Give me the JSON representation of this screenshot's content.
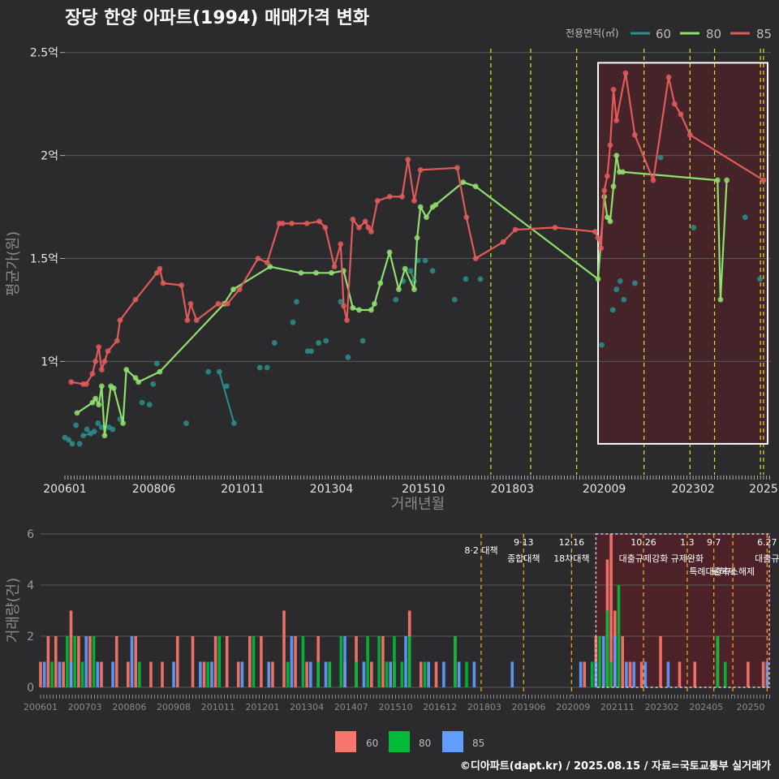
{
  "title": "장당 한양 아파트(1994) 매매가격 변화",
  "colors": {
    "bg": "#2b2b2d",
    "grid": "#5a5a5a",
    "teal": "#2a8f8c",
    "green": "#8fdf6f",
    "red": "#e05a5a",
    "bar60": "#f8766d",
    "bar80": "#00ba38",
    "bar85": "#619cff",
    "shade": "#5a1f27",
    "vline_yellow": "#e8e020",
    "vline_orange": "#f0a020"
  },
  "footer": "©디아파트(dapt.kr) / 2025.08.15 / 자료=국토교통부 실거래가",
  "chart_data": [
    {
      "type": "line",
      "title": "장당 한양 아파트(1994) 매매가격 변화",
      "xlabel": "거래년월",
      "ylabel": "평균가(원)",
      "ylim": [
        0.45,
        2.55
      ],
      "yticks": [
        1,
        1.5,
        2,
        2.5
      ],
      "ytick_labels": [
        "1억",
        "1.5억",
        "2억",
        "2.5억"
      ],
      "xlim": [
        2006.0,
        2025.2
      ],
      "xticks": [
        2006.0,
        2008.417,
        2010.833,
        2013.25,
        2015.75,
        2018.167,
        2020.667,
        2023.083,
        2025.0
      ],
      "xtick_labels": [
        "200601",
        "200806",
        "201011",
        "201304",
        "201510",
        "201803",
        "202009",
        "202302",
        "2025"
      ],
      "legend": {
        "title": "전용면적(㎡)",
        "position": "top-right",
        "entries": [
          "60",
          "80",
          "85"
        ]
      },
      "vlines": [
        2017.583,
        2018.667,
        2019.917,
        2021.75,
        2023.0,
        2023.667,
        2024.917,
        2025.0
      ],
      "highlight": {
        "x": [
          2020.5,
          2025.2
        ],
        "y": [
          0.6,
          2.45
        ]
      },
      "series": [
        {
          "name": "60",
          "x": [
            2006.0,
            2006.1,
            2006.2,
            2006.3,
            2006.4,
            2006.5,
            2006.6,
            2006.7,
            2006.8,
            2006.9,
            2007.0,
            2007.2,
            2007.3,
            2007.5,
            2008.1,
            2008.3,
            2008.4,
            2008.5,
            2009.3,
            2009.9,
            2010.2,
            2010.4,
            2010.6,
            2011.3,
            2011.5,
            2011.7,
            2012.2,
            2012.3,
            2012.6,
            2012.7,
            2012.9,
            2013.1,
            2013.5,
            2013.7,
            2014.1,
            2015.0,
            2015.2,
            2015.4,
            2015.5,
            2015.6,
            2015.8,
            2016.0,
            2016.6,
            2016.9,
            2017.3,
            2020.6,
            2020.9,
            2021.0,
            2021.1,
            2021.2,
            2021.5,
            2022.2,
            2023.1,
            2024.5,
            2024.9
          ],
          "values": [
            0.63,
            0.62,
            0.6,
            0.69,
            0.6,
            0.64,
            0.67,
            0.65,
            0.66,
            0.7,
            0.68,
            0.68,
            0.67,
            0.72,
            0.8,
            0.79,
            0.89,
            0.99,
            0.7,
            0.95,
            0.95,
            0.88,
            0.7,
            0.97,
            0.97,
            1.09,
            1.19,
            1.29,
            1.05,
            1.05,
            1.09,
            1.1,
            1.29,
            1.02,
            1.1,
            1.3,
            1.39,
            1.44,
            1.39,
            1.49,
            1.49,
            1.44,
            1.3,
            1.4,
            1.4,
            1.08,
            1.25,
            1.35,
            1.39,
            1.3,
            1.38,
            1.99,
            1.65,
            1.7,
            1.4
          ]
        },
        {
          "name": "80",
          "x": [
            2006.33,
            2006.75,
            2006.83,
            2006.92,
            2007.0,
            2007.08,
            2007.25,
            2007.33,
            2007.58,
            2007.67,
            2007.92,
            2008.0,
            2008.58,
            2010.33,
            2010.58,
            2011.58,
            2012.42,
            2012.83,
            2013.25,
            2013.58,
            2013.83,
            2014.0,
            2014.33,
            2014.42,
            2014.58,
            2014.83,
            2015.08,
            2015.25,
            2015.5,
            2015.58,
            2015.67,
            2015.83,
            2016.0,
            2016.08,
            2016.83,
            2017.17,
            2020.5,
            2020.67,
            2020.75,
            2020.83,
            2020.92,
            2021.0,
            2021.08,
            2021.17,
            2023.75,
            2023.83,
            2024.0
          ],
          "values": [
            0.75,
            0.8,
            0.82,
            0.79,
            0.88,
            0.64,
            0.88,
            0.87,
            0.7,
            0.96,
            0.92,
            0.9,
            0.95,
            1.28,
            1.35,
            1.46,
            1.43,
            1.43,
            1.43,
            1.44,
            1.26,
            1.25,
            1.25,
            1.28,
            1.38,
            1.53,
            1.35,
            1.45,
            1.35,
            1.6,
            1.75,
            1.7,
            1.75,
            1.76,
            1.87,
            1.85,
            1.4,
            1.8,
            1.7,
            1.68,
            1.85,
            2.0,
            1.92,
            1.92,
            1.88,
            1.3,
            1.88
          ]
        },
        {
          "name": "85",
          "x": [
            2006.17,
            2006.5,
            2006.58,
            2006.75,
            2006.83,
            2006.92,
            2007.0,
            2007.08,
            2007.17,
            2007.42,
            2007.5,
            2007.92,
            2008.5,
            2008.58,
            2008.67,
            2009.17,
            2009.33,
            2009.42,
            2009.58,
            2010.17,
            2010.42,
            2010.75,
            2011.25,
            2011.5,
            2011.83,
            2011.92,
            2012.17,
            2012.58,
            2012.92,
            2013.08,
            2013.33,
            2013.5,
            2013.58,
            2013.67,
            2013.83,
            2014.0,
            2014.17,
            2014.25,
            2014.33,
            2014.5,
            2014.83,
            2015.17,
            2015.33,
            2015.5,
            2015.67,
            2016.67,
            2016.92,
            2017.17,
            2017.92,
            2018.25,
            2019.33,
            2020.42,
            2020.5,
            2020.58,
            2020.67,
            2020.75,
            2020.83,
            2020.92,
            2021.0,
            2021.25,
            2021.5,
            2022.0,
            2022.42,
            2022.58,
            2022.75,
            2023.0,
            2025.0
          ],
          "values": [
            0.9,
            0.89,
            0.89,
            0.94,
            1.0,
            1.07,
            0.96,
            1.0,
            1.05,
            1.1,
            1.2,
            1.3,
            1.43,
            1.45,
            1.38,
            1.37,
            1.2,
            1.28,
            1.2,
            1.28,
            1.28,
            1.35,
            1.5,
            1.48,
            1.67,
            1.67,
            1.67,
            1.67,
            1.68,
            1.65,
            1.46,
            1.57,
            1.27,
            1.2,
            1.69,
            1.65,
            1.68,
            1.65,
            1.63,
            1.78,
            1.8,
            1.8,
            1.98,
            1.78,
            1.93,
            1.94,
            1.7,
            1.5,
            1.58,
            1.64,
            1.65,
            1.63,
            1.6,
            1.55,
            1.83,
            1.9,
            2.05,
            2.32,
            2.17,
            2.4,
            2.1,
            1.88,
            2.38,
            2.25,
            2.2,
            2.1,
            1.88
          ]
        }
      ]
    },
    {
      "type": "bar",
      "ylabel": "거래량(건)",
      "ylim": [
        0,
        6
      ],
      "yticks": [
        0,
        2,
        4,
        6
      ],
      "xtick_labels": [
        "200601",
        "200703",
        "200806",
        "200908",
        "201011",
        "201201",
        "201304",
        "201407",
        "201510",
        "201612",
        "201803",
        "201906",
        "202009",
        "202111",
        "202302",
        "202405",
        "20250"
      ],
      "legend": {
        "position": "bottom",
        "entries": [
          "60",
          "80",
          "85"
        ]
      },
      "series": [
        {
          "name": "60",
          "x": [
            2006.0,
            2006.2,
            2006.4,
            2006.6,
            2006.8,
            2007.0,
            2007.3,
            2007.6,
            2008.0,
            2008.3,
            2008.5,
            2008.9,
            2009.2,
            2009.6,
            2010.0,
            2010.3,
            2010.6,
            2010.9,
            2011.2,
            2011.5,
            2011.8,
            2012.1,
            2012.4,
            2012.7,
            2013.0,
            2013.3,
            2013.6,
            2014.0,
            2014.3,
            2014.7,
            2015.0,
            2015.3,
            2015.7,
            2016.0,
            2016.4,
            2016.9,
            2020.3,
            2020.6,
            2020.9,
            2021.0,
            2021.1,
            2021.3,
            2021.5,
            2021.8,
            2022.3,
            2022.8,
            2023.2,
            2023.8,
            2024.6,
            2025.0
          ],
          "values": [
            1,
            2,
            2,
            1,
            3,
            2,
            2,
            1,
            2,
            1,
            2,
            1,
            1,
            2,
            2,
            1,
            2,
            2,
            1,
            2,
            2,
            1,
            3,
            2,
            1,
            2,
            1,
            1,
            2,
            1,
            2,
            1,
            3,
            1,
            1,
            2,
            1,
            2,
            5,
            6,
            3,
            2,
            1,
            1,
            2,
            1,
            1,
            2,
            1,
            1
          ]
        },
        {
          "name": "80",
          "x": [
            2006.3,
            2006.7,
            2006.9,
            2007.1,
            2007.4,
            2008.6,
            2010.4,
            2010.7,
            2011.6,
            2012.5,
            2012.9,
            2013.3,
            2013.6,
            2013.9,
            2014.3,
            2014.6,
            2014.9,
            2015.1,
            2015.3,
            2015.5,
            2015.7,
            2016.1,
            2016.9,
            2017.2,
            2020.5,
            2020.7,
            2020.9,
            2021.0,
            2021.2,
            2023.8,
            2024.0
          ],
          "values": [
            1,
            2,
            2,
            1,
            2,
            1,
            1,
            2,
            2,
            1,
            2,
            1,
            1,
            2,
            1,
            2,
            2,
            1,
            2,
            1,
            2,
            1,
            2,
            1,
            1,
            2,
            3,
            1,
            4,
            2,
            1
          ]
        },
        {
          "name": "85",
          "x": [
            2006.1,
            2006.5,
            2006.8,
            2007.2,
            2007.5,
            2007.9,
            2008.4,
            2009.5,
            2010.2,
            2010.5,
            2011.3,
            2012.0,
            2012.6,
            2013.1,
            2013.5,
            2014.0,
            2014.5,
            2015.2,
            2015.6,
            2016.2,
            2016.6,
            2017.0,
            2017.4,
            2018.4,
            2020.2,
            2020.6,
            2020.8,
            2021.1,
            2021.4,
            2021.6,
            2021.9,
            2022.5,
            2025.1
          ],
          "values": [
            1,
            1,
            1,
            2,
            1,
            1,
            2,
            1,
            1,
            1,
            1,
            1,
            2,
            1,
            1,
            2,
            1,
            1,
            2,
            1,
            1,
            1,
            1,
            1,
            1,
            1,
            2,
            2,
            1,
            1,
            1,
            1,
            1
          ]
        }
      ],
      "events": [
        {
          "x": 2017.583,
          "date": "",
          "label": "8·2 대책"
        },
        {
          "x": 2018.7,
          "date": "9·13",
          "label": "종합대책"
        },
        {
          "x": 2019.96,
          "date": "12·16",
          "label": "18차대책"
        },
        {
          "x": 2021.85,
          "date": "10.26",
          "label": "대출규제강화"
        },
        {
          "x": 2023.0,
          "date": "1.3",
          "label": "규제완화"
        },
        {
          "x": 2023.7,
          "date": "9·7",
          "label": "특례대출축소"
        },
        {
          "x": 2024.2,
          "date": "",
          "label": "토허제 해제"
        },
        {
          "x": 2025.1,
          "date": "6.27",
          "label": "대출규"
        }
      ],
      "highlight": {
        "x": [
          2020.6,
          2025.2
        ],
        "y": [
          0,
          6
        ]
      }
    }
  ]
}
